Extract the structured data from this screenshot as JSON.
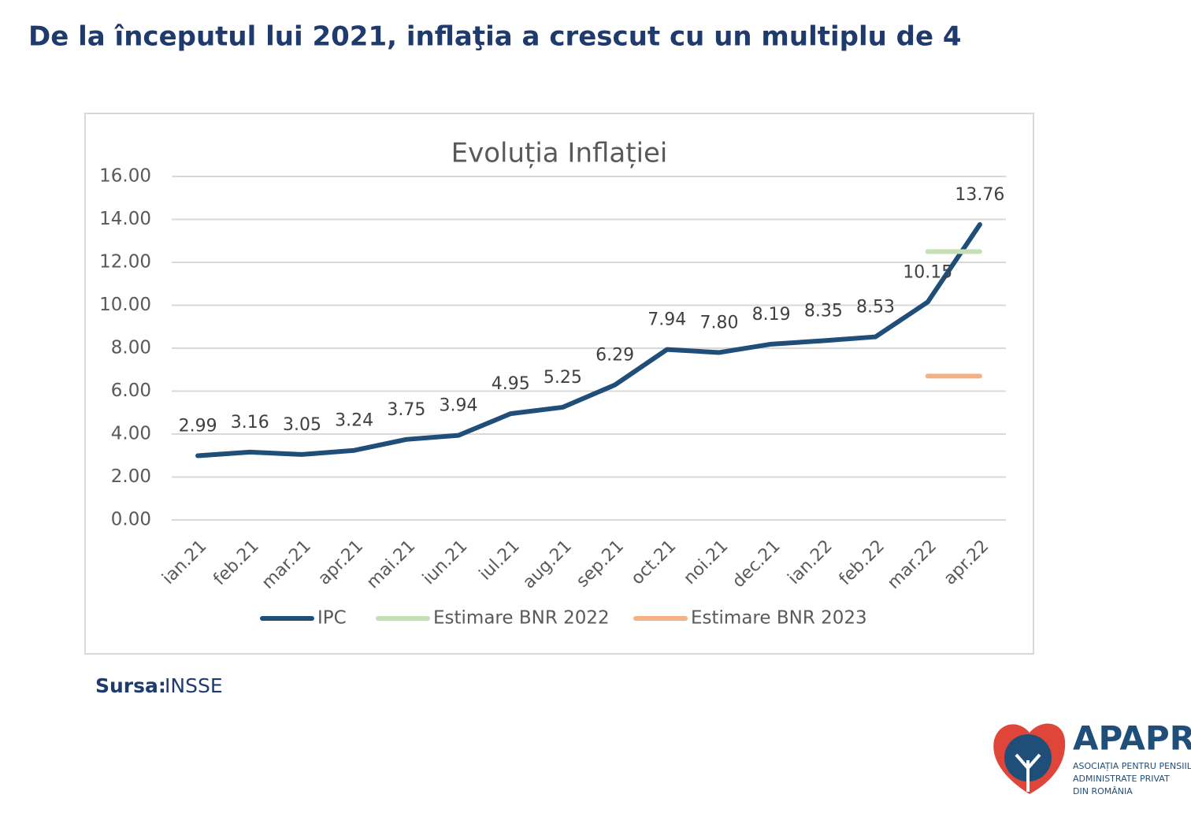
{
  "header": {
    "title": "De la începutul lui 2021, inflaţia a crescut cu un multiplu de 4"
  },
  "chart_data": {
    "type": "line",
    "title": "Evoluția Inflației",
    "categories": [
      "ian.21",
      "feb.21",
      "mar.21",
      "apr.21",
      "mai.21",
      "iun.21",
      "iul.21",
      "aug.21",
      "sep.21",
      "oct.21",
      "noi.21",
      "dec.21",
      "ian.22",
      "feb.22",
      "mar.22",
      "apr.22"
    ],
    "series": [
      {
        "name": "IPC",
        "color": "#1f4e79",
        "values": [
          2.99,
          3.16,
          3.05,
          3.24,
          3.75,
          3.94,
          4.95,
          5.25,
          6.29,
          7.94,
          7.8,
          8.19,
          8.35,
          8.53,
          10.15,
          13.76
        ],
        "value_labels": [
          "2.99",
          "3.16",
          "3.05",
          "3.24",
          "3.75",
          "3.94",
          "4.95",
          "5.25",
          "6.29",
          "7.94",
          "7.80",
          "8.19",
          "8.35",
          "8.53",
          "10.15",
          "13.76"
        ]
      },
      {
        "name": "Estimare BNR 2022",
        "color": "#c5e0b4",
        "values": [
          null,
          null,
          null,
          null,
          null,
          null,
          null,
          null,
          null,
          null,
          null,
          null,
          null,
          null,
          12.5,
          12.5
        ]
      },
      {
        "name": "Estimare BNR 2023",
        "color": "#f4b183",
        "values": [
          null,
          null,
          null,
          null,
          null,
          null,
          null,
          null,
          null,
          null,
          null,
          null,
          null,
          null,
          6.7,
          6.7
        ]
      }
    ],
    "ylim": [
      0,
      16
    ],
    "yticks": [
      {
        "value": 0,
        "label": "0.00"
      },
      {
        "value": 2,
        "label": "2.00"
      },
      {
        "value": 4,
        "label": "4.00"
      },
      {
        "value": 6,
        "label": "6.00"
      },
      {
        "value": 8,
        "label": "8.00"
      },
      {
        "value": 10,
        "label": "10.00"
      },
      {
        "value": 12,
        "label": "12.00"
      },
      {
        "value": 14,
        "label": "14.00"
      },
      {
        "value": 16,
        "label": "16.00"
      }
    ],
    "grid": true,
    "legend": "bottom"
  },
  "source": {
    "label": "Sursa:",
    "value": "INSSE"
  },
  "logo": {
    "name": "APAPR",
    "lines": [
      "ASOCIAȚIA PENTRU PENSIILE",
      "ADMINISTRATE PRIVAT",
      "DIN ROMÂNIA"
    ]
  }
}
